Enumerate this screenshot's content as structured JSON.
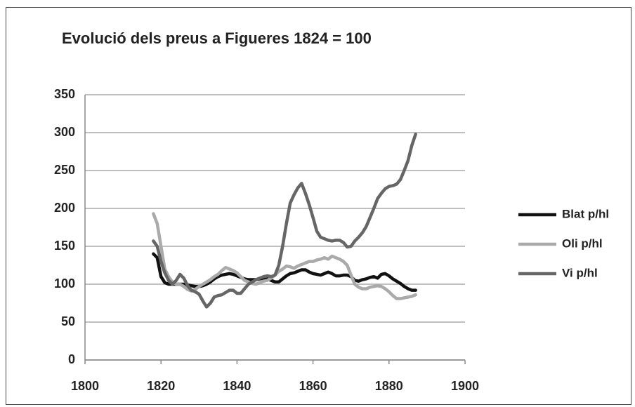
{
  "chart_data": {
    "type": "line",
    "title": "Evolució dels preus a Figueres 1824 = 100",
    "x": [
      1818,
      1819,
      1820,
      1821,
      1822,
      1823,
      1824,
      1825,
      1826,
      1827,
      1828,
      1829,
      1830,
      1831,
      1832,
      1833,
      1834,
      1835,
      1836,
      1837,
      1838,
      1839,
      1840,
      1841,
      1842,
      1843,
      1844,
      1845,
      1846,
      1847,
      1848,
      1849,
      1850,
      1851,
      1852,
      1853,
      1854,
      1855,
      1856,
      1857,
      1858,
      1859,
      1860,
      1861,
      1862,
      1863,
      1864,
      1865,
      1866,
      1867,
      1868,
      1869,
      1870,
      1871,
      1872,
      1873,
      1874,
      1875,
      1876,
      1877,
      1878,
      1879,
      1880,
      1881,
      1882,
      1883,
      1884,
      1885,
      1886,
      1887
    ],
    "series": [
      {
        "name": "Blat p/hl",
        "color": "#111111",
        "values": [
          140,
          135,
          110,
          102,
          100,
          100,
          100,
          100,
          100,
          99,
          98,
          97,
          97,
          98,
          100,
          103,
          107,
          110,
          112,
          113,
          114,
          113,
          111,
          109,
          107,
          106,
          106,
          106,
          107,
          108,
          107,
          105,
          103,
          103,
          107,
          111,
          114,
          115,
          117,
          119,
          119,
          116,
          114,
          113,
          112,
          114,
          116,
          114,
          111,
          111,
          112,
          112,
          110,
          105,
          104,
          106,
          107,
          109,
          110,
          108,
          113,
          114,
          111,
          107,
          104,
          101,
          97,
          94,
          92,
          92
        ]
      },
      {
        "name": "Oli p/hl",
        "color": "#aaaaaa",
        "values": [
          193,
          180,
          150,
          120,
          110,
          103,
          100,
          100,
          97,
          93,
          91,
          93,
          97,
          100,
          103,
          106,
          110,
          113,
          118,
          122,
          120,
          118,
          115,
          110,
          105,
          103,
          101,
          100,
          102,
          104,
          105,
          108,
          112,
          117,
          120,
          124,
          123,
          121,
          124,
          126,
          128,
          130,
          130,
          132,
          133,
          135,
          133,
          137,
          135,
          133,
          130,
          125,
          112,
          100,
          96,
          94,
          94,
          96,
          97,
          98,
          97,
          94,
          90,
          85,
          81,
          81,
          82,
          83,
          84,
          86
        ]
      },
      {
        "name": "Vi p/hl",
        "color": "#666666",
        "values": [
          157,
          150,
          130,
          115,
          105,
          100,
          105,
          113,
          108,
          98,
          92,
          90,
          87,
          78,
          70,
          75,
          83,
          85,
          86,
          89,
          92,
          92,
          88,
          88,
          94,
          100,
          103,
          106,
          108,
          110,
          111,
          110,
          112,
          125,
          150,
          180,
          207,
          218,
          227,
          233,
          220,
          205,
          188,
          170,
          162,
          160,
          158,
          157,
          158,
          158,
          155,
          149,
          150,
          157,
          162,
          168,
          176,
          188,
          200,
          213,
          220,
          226,
          229,
          230,
          232,
          238,
          250,
          263,
          283,
          298
        ]
      }
    ],
    "xlim": [
      1800,
      1900
    ],
    "xticks": [
      1800,
      1820,
      1840,
      1860,
      1880,
      1900
    ],
    "ylim": [
      0,
      350
    ],
    "yticks": [
      0,
      50,
      100,
      150,
      200,
      250,
      300,
      350
    ],
    "grid": true,
    "legend": "right"
  }
}
